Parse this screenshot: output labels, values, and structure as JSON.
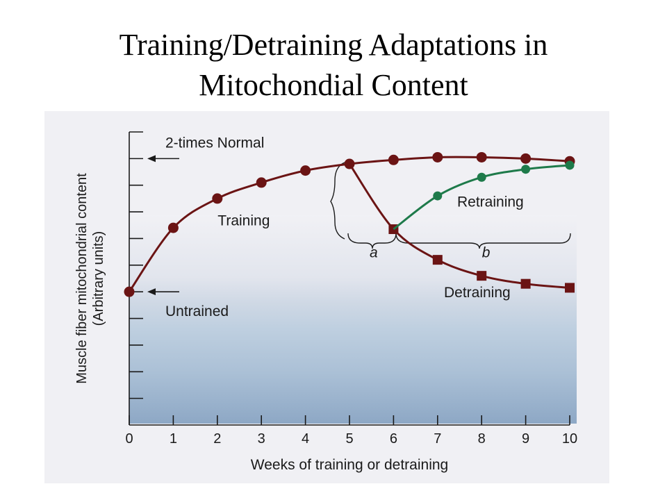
{
  "slide": {
    "title_line1": "Training/Detraining Adaptations in",
    "title_line2": "Mitochondial Content"
  },
  "chart_data": {
    "type": "line",
    "xlabel": "Weeks of training or detraining",
    "ylabel": "Muscle fiber mitochondrial content",
    "ylabel_units": "(Arbitrary units)",
    "xticks": [
      "0",
      "1",
      "2",
      "3",
      "4",
      "5",
      "6",
      "7",
      "8",
      "9",
      "10"
    ],
    "xlim": [
      0,
      10
    ],
    "ylim": [
      0,
      11
    ],
    "y_reference": [
      {
        "label": "2-times Normal",
        "y": 10
      },
      {
        "label": "Untrained",
        "y": 5
      }
    ],
    "series": [
      {
        "name": "Training",
        "marker": "circle",
        "color": "#6b1414",
        "x": [
          0,
          1,
          2,
          3,
          4,
          5,
          6,
          7,
          8,
          9,
          10
        ],
        "y": [
          5.0,
          7.4,
          8.5,
          9.1,
          9.55,
          9.8,
          9.95,
          10.05,
          10.05,
          10.0,
          9.9
        ]
      },
      {
        "name": "Detraining",
        "marker": "square",
        "color": "#6b1414",
        "x": [
          5,
          6,
          7,
          8,
          9,
          10
        ],
        "y": [
          9.8,
          7.35,
          6.2,
          5.6,
          5.3,
          5.15
        ]
      },
      {
        "name": "Retraining",
        "marker": "circle",
        "color": "#1e7a4a",
        "x": [
          6,
          7,
          8,
          9,
          10
        ],
        "y": [
          7.35,
          8.6,
          9.3,
          9.6,
          9.75
        ]
      }
    ],
    "annotations": [
      {
        "text": "Training",
        "x": 2.6,
        "y": 7.5
      },
      {
        "text": "Retraining",
        "x": 8.2,
        "y": 8.2
      },
      {
        "text": "Detraining",
        "x": 7.9,
        "y": 4.8
      },
      {
        "text": "a",
        "x": 5.55,
        "y": 6.3
      },
      {
        "text": "b",
        "x": 8.1,
        "y": 6.3
      }
    ],
    "grid": false,
    "legend": "none"
  },
  "colors": {
    "dark_series": "#6b1414",
    "green_series": "#1e7a4a",
    "background_top": "#f0f0f4",
    "background_bottom": "#7d9fc0"
  }
}
